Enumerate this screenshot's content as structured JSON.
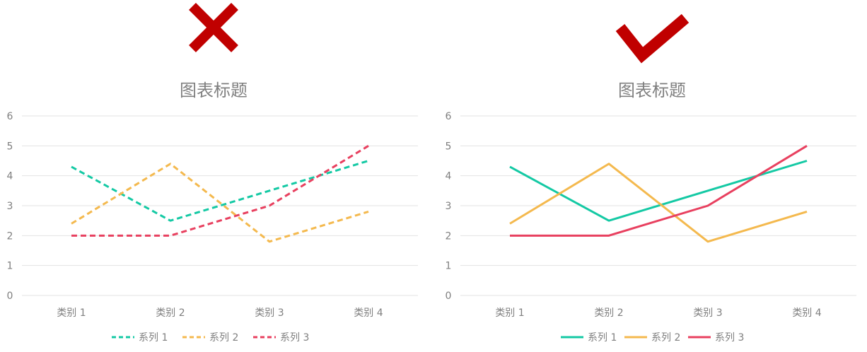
{
  "chart_data": [
    {
      "type": "line",
      "verdict": "wrong",
      "verdict_color": "#c00000",
      "line_style": "dashed",
      "title": "图表标题",
      "categories": [
        "类别 1",
        "类别 2",
        "类别 3",
        "类别 4"
      ],
      "ylim": [
        0,
        6
      ],
      "yticks": [
        0,
        1,
        2,
        3,
        4,
        5,
        6
      ],
      "grid": true,
      "legend_position": "bottom",
      "series": [
        {
          "name": "系列 1",
          "color": "#14c9a4",
          "values": [
            4.3,
            2.5,
            3.5,
            4.5
          ]
        },
        {
          "name": "系列 2",
          "color": "#f4b94e",
          "values": [
            2.4,
            4.4,
            1.8,
            2.8
          ]
        },
        {
          "name": "系列 3",
          "color": "#e8405f",
          "values": [
            2,
            2,
            3,
            5
          ]
        }
      ]
    },
    {
      "type": "line",
      "verdict": "correct",
      "verdict_color": "#c00000",
      "line_style": "solid",
      "title": "图表标题",
      "categories": [
        "类别 1",
        "类别 2",
        "类别 3",
        "类别 4"
      ],
      "ylim": [
        0,
        6
      ],
      "yticks": [
        0,
        1,
        2,
        3,
        4,
        5,
        6
      ],
      "grid": true,
      "legend_position": "bottom",
      "series": [
        {
          "name": "系列 1",
          "color": "#14c9a4",
          "values": [
            4.3,
            2.5,
            3.5,
            4.5
          ]
        },
        {
          "name": "系列 2",
          "color": "#f4b94e",
          "values": [
            2.4,
            4.4,
            1.8,
            2.8
          ]
        },
        {
          "name": "系列 3",
          "color": "#e8405f",
          "values": [
            2,
            2,
            3,
            5
          ]
        }
      ]
    }
  ]
}
